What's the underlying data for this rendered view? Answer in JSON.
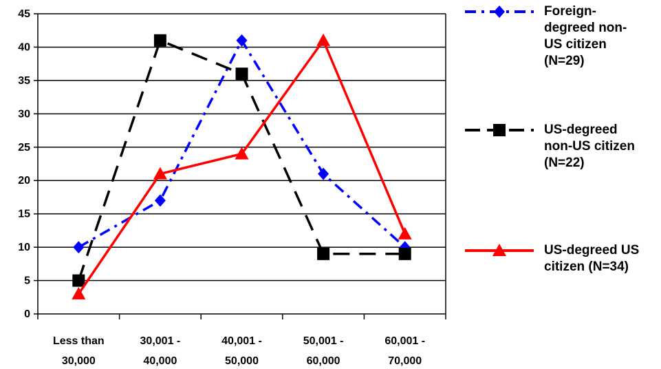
{
  "chart_data": {
    "type": "line",
    "title": "",
    "xlabel": "",
    "ylabel": "",
    "ylim": [
      0,
      45
    ],
    "ytick_step": 5,
    "grid": true,
    "legend_position": "right",
    "categories": [
      [
        "Less than",
        "30,000"
      ],
      [
        "30,001 -",
        "40,000"
      ],
      [
        "40,001 -",
        "50,000"
      ],
      [
        "50,001 -",
        "60,000"
      ],
      [
        "60,001 -",
        "70,000"
      ]
    ],
    "series": [
      {
        "name": "Foreign-degreed non-US citizen (N=29)",
        "legend_lines": [
          "Foreign-",
          "degreed non-",
          "US citizen",
          "(N=29)"
        ],
        "values": [
          10,
          17,
          41,
          21,
          10
        ],
        "color": "#0000FF",
        "line_style": "dash-dot",
        "marker": "diamond"
      },
      {
        "name": "US-degreed non-US citizen (N=22)",
        "legend_lines": [
          "US-degreed",
          "non-US citizen",
          "(N=22)"
        ],
        "values": [
          5,
          41,
          36,
          9,
          9
        ],
        "color": "#000000",
        "line_style": "dash",
        "marker": "square"
      },
      {
        "name": "US-degreed US citizen (N=34)",
        "legend_lines": [
          "US-degreed US",
          "citizen (N=34)"
        ],
        "values": [
          3,
          21,
          24,
          41,
          12
        ],
        "color": "#FF0000",
        "line_style": "solid",
        "marker": "triangle"
      }
    ]
  }
}
